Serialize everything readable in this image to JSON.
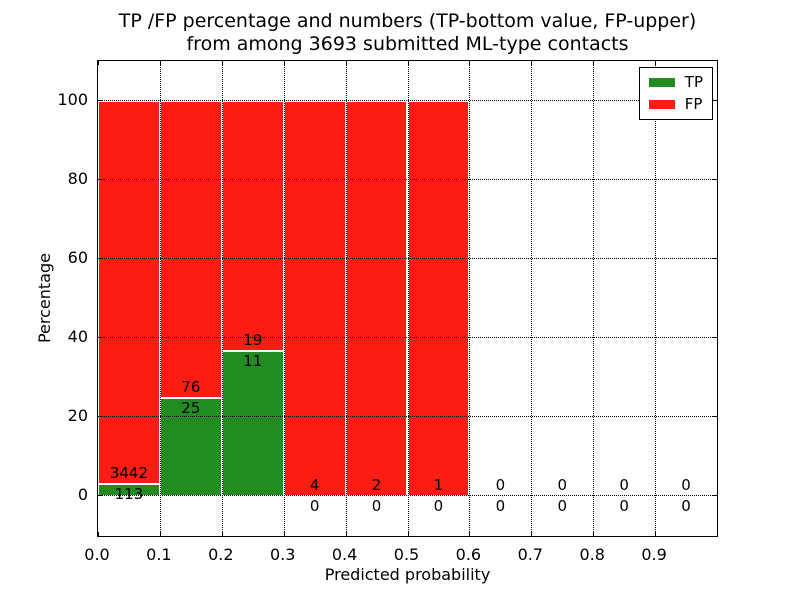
{
  "chart_data": {
    "type": "bar",
    "stacked": true,
    "title": "TP /FP percentage and numbers (TP-bottom value, FP-upper)\nfrom among 3693 submitted ML-type contacts",
    "xlabel": "Predicted probability",
    "ylabel": "Percentage",
    "xlim": [
      0.0,
      1.0
    ],
    "ylim": [
      -10,
      110
    ],
    "xticks": [
      0.0,
      0.1,
      0.2,
      0.3,
      0.4,
      0.5,
      0.6,
      0.7,
      0.8,
      0.9
    ],
    "xtick_labels": [
      "0.0",
      "0.1",
      "0.2",
      "0.3",
      "0.4",
      "0.5",
      "0.6",
      "0.7",
      "0.8",
      "0.9"
    ],
    "yticks": [
      0,
      20,
      40,
      60,
      80,
      100
    ],
    "ytick_labels": [
      "0",
      "20",
      "40",
      "60",
      "80",
      "100"
    ],
    "bin_edges": [
      0.0,
      0.1,
      0.2,
      0.3,
      0.4,
      0.5,
      0.6,
      0.7,
      0.8,
      0.9,
      1.0
    ],
    "series": [
      {
        "name": "TP",
        "color": "#228b22",
        "counts": [
          113,
          25,
          11,
          0,
          0,
          0,
          0,
          0,
          0,
          0
        ]
      },
      {
        "name": "FP",
        "color": "#fb1c13",
        "counts": [
          3442,
          76,
          19,
          4,
          2,
          1,
          0,
          0,
          0,
          0
        ]
      }
    ],
    "bar_height_rule": "each non-empty bin is stacked to 100%, TP share = TP/(TP+FP)",
    "total_contacts": 3693,
    "grid": true,
    "grid_style": "dotted",
    "legend_position": "upper right",
    "axis_color": "#000000",
    "background_color": "#ffffff",
    "bar_edge_color": "#ffffff"
  }
}
